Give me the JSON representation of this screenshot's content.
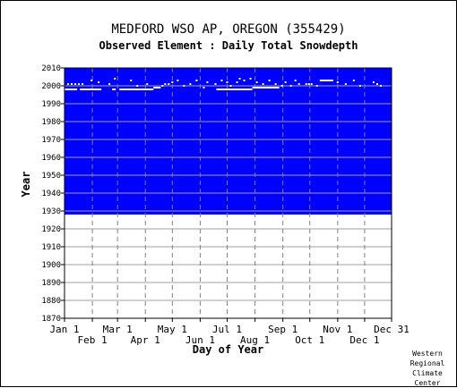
{
  "title": "MEDFORD WSO AP, OREGON   (355429)",
  "subtitle": "Observed Element : Daily Total Snowdepth",
  "credit": [
    "Western",
    "Regional",
    "Climate",
    "Center"
  ],
  "colors": {
    "coverage": "#0000ff",
    "gap": "#ffffff",
    "grid_solid": "#a0a0a0",
    "grid_dashed": "#808080",
    "axis": "#000000"
  },
  "chart_data": {
    "type": "heatmap",
    "title": "MEDFORD WSO AP, OREGON   (355429)",
    "subtitle": "Observed Element : Daily Total Snowdepth",
    "xlabel": "Day of Year",
    "ylabel": "Year",
    "xlim": [
      1,
      365
    ],
    "ylim": [
      1870,
      2010
    ],
    "grid": true,
    "x_ticks_top": [
      {
        "label": "Jan 1",
        "day": 1
      },
      {
        "label": "Mar 1",
        "day": 60
      },
      {
        "label": "May 1",
        "day": 121
      },
      {
        "label": "Jul 1",
        "day": 182
      },
      {
        "label": "Sep 1",
        "day": 244
      },
      {
        "label": "Nov 1",
        "day": 305
      },
      {
        "label": "Dec 31",
        "day": 365
      }
    ],
    "x_ticks_bottom": [
      {
        "label": "Feb 1",
        "day": 32
      },
      {
        "label": "Apr 1",
        "day": 91
      },
      {
        "label": "Jun 1",
        "day": 152
      },
      {
        "label": "Aug 1",
        "day": 213
      },
      {
        "label": "Oct 1",
        "day": 274
      },
      {
        "label": "Dec 1",
        "day": 335
      }
    ],
    "y_ticks": [
      1870,
      1880,
      1890,
      1900,
      1910,
      1920,
      1930,
      1940,
      1950,
      1960,
      1970,
      1980,
      1990,
      2000,
      2010
    ],
    "coverage_years": [
      1928,
      2010
    ],
    "missing_segments": [
      {
        "year": 1998,
        "start_day": 1,
        "end_day": 15
      },
      {
        "year": 1998,
        "start_day": 18,
        "end_day": 42
      },
      {
        "year": 1998,
        "start_day": 54,
        "end_day": 58
      },
      {
        "year": 1998,
        "start_day": 62,
        "end_day": 100
      },
      {
        "year": 1999,
        "start_day": 100,
        "end_day": 108
      },
      {
        "year": 1998,
        "start_day": 170,
        "end_day": 210
      },
      {
        "year": 1999,
        "start_day": 210,
        "end_day": 240
      },
      {
        "year": 2003,
        "start_day": 285,
        "end_day": 300
      }
    ],
    "missing_dots": [
      {
        "year": 2001,
        "day": 5
      },
      {
        "year": 2001,
        "day": 9
      },
      {
        "year": 2001,
        "day": 13
      },
      {
        "year": 2001,
        "day": 17
      },
      {
        "year": 2001,
        "day": 21
      },
      {
        "year": 2003,
        "day": 31
      },
      {
        "year": 2002,
        "day": 39
      },
      {
        "year": 2001,
        "day": 51
      },
      {
        "year": 2004,
        "day": 57
      },
      {
        "year": 2003,
        "day": 75
      },
      {
        "year": 2000,
        "day": 82
      },
      {
        "year": 2001,
        "day": 93
      },
      {
        "year": 2000,
        "day": 110
      },
      {
        "year": 2001,
        "day": 113
      },
      {
        "year": 2001,
        "day": 117
      },
      {
        "year": 2002,
        "day": 121
      },
      {
        "year": 2003,
        "day": 127
      },
      {
        "year": 2000,
        "day": 134
      },
      {
        "year": 2001,
        "day": 141
      },
      {
        "year": 2003,
        "day": 148
      },
      {
        "year": 1999,
        "day": 156
      },
      {
        "year": 2002,
        "day": 160
      },
      {
        "year": 2001,
        "day": 169
      },
      {
        "year": 2003,
        "day": 176
      },
      {
        "year": 2002,
        "day": 182
      },
      {
        "year": 2000,
        "day": 186
      },
      {
        "year": 2002,
        "day": 193
      },
      {
        "year": 2004,
        "day": 196
      },
      {
        "year": 2003,
        "day": 201
      },
      {
        "year": 2004,
        "day": 208
      },
      {
        "year": 2002,
        "day": 215
      },
      {
        "year": 2001,
        "day": 222
      },
      {
        "year": 2003,
        "day": 229
      },
      {
        "year": 2001,
        "day": 236
      },
      {
        "year": 2000,
        "day": 243
      },
      {
        "year": 2002,
        "day": 247
      },
      {
        "year": 2000,
        "day": 253
      },
      {
        "year": 2003,
        "day": 258
      },
      {
        "year": 2001,
        "day": 262
      },
      {
        "year": 2001,
        "day": 270
      },
      {
        "year": 2001,
        "day": 273
      },
      {
        "year": 2001,
        "day": 276
      },
      {
        "year": 2000,
        "day": 282
      },
      {
        "year": 2002,
        "day": 305
      },
      {
        "year": 2001,
        "day": 314
      },
      {
        "year": 2003,
        "day": 323
      },
      {
        "year": 2000,
        "day": 330
      },
      {
        "year": 2002,
        "day": 345
      },
      {
        "year": 2001,
        "day": 349
      },
      {
        "year": 2000,
        "day": 353
      }
    ]
  }
}
